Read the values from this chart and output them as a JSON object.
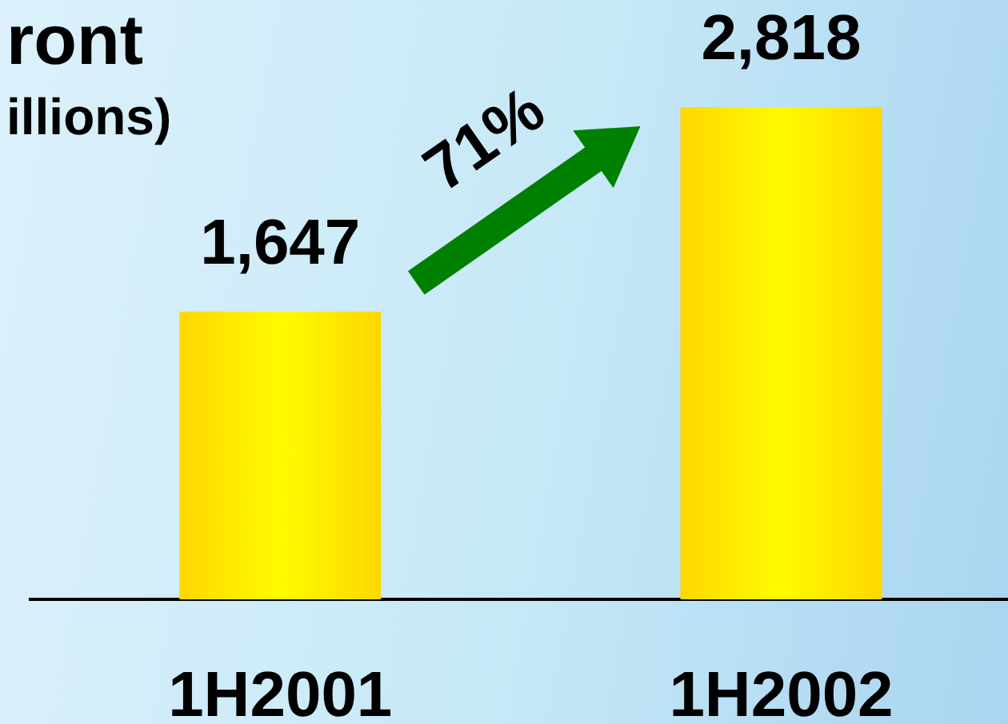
{
  "chart_data": {
    "type": "bar",
    "title": "ront",
    "subtitle": "illions)",
    "categories": [
      "1H2001",
      "1H2002"
    ],
    "values": [
      1647,
      2818
    ],
    "value_labels": [
      "1,647",
      "2,818"
    ],
    "color": "#ffd700",
    "annotations": [
      "71%"
    ]
  }
}
